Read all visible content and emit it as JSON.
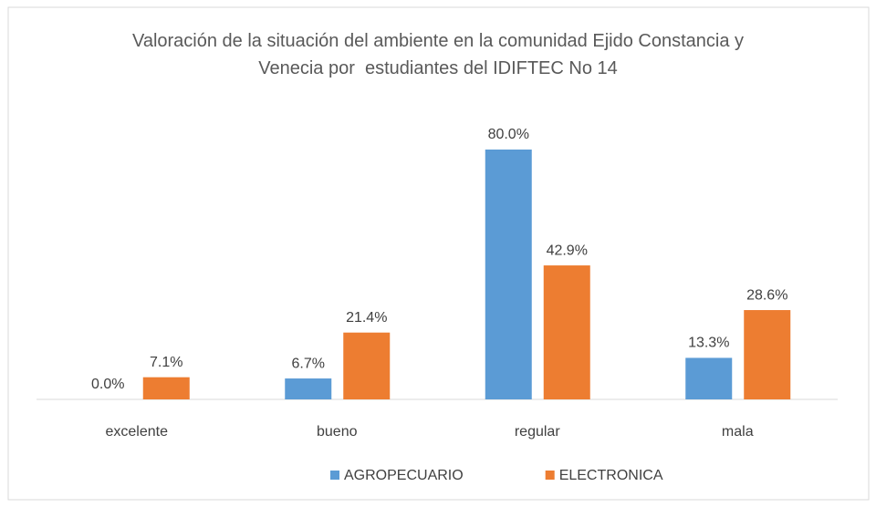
{
  "chart_data": {
    "type": "bar",
    "title": "Valoración de la situación del ambiente en la comunidad Ejido Constancia y Venecia por  estudiantes del IDIFTEC No 14",
    "categories": [
      "excelente",
      "bueno",
      "regular",
      "mala"
    ],
    "series": [
      {
        "name": "AGROPECUARIO",
        "color": "#5b9bd5",
        "values": [
          0,
          6.7,
          80,
          13.3
        ],
        "value_labels": [
          "0.0%",
          "6.7%",
          "80.0%",
          "13.3%"
        ]
      },
      {
        "name": "ELECTRONICA",
        "color": "#ed7d31",
        "values": [
          7.1,
          21.4,
          42.9,
          28.6
        ],
        "value_labels": [
          "7.1%",
          "21.4%",
          "42.9%",
          "28.6%"
        ]
      }
    ],
    "legend": "bottom"
  }
}
